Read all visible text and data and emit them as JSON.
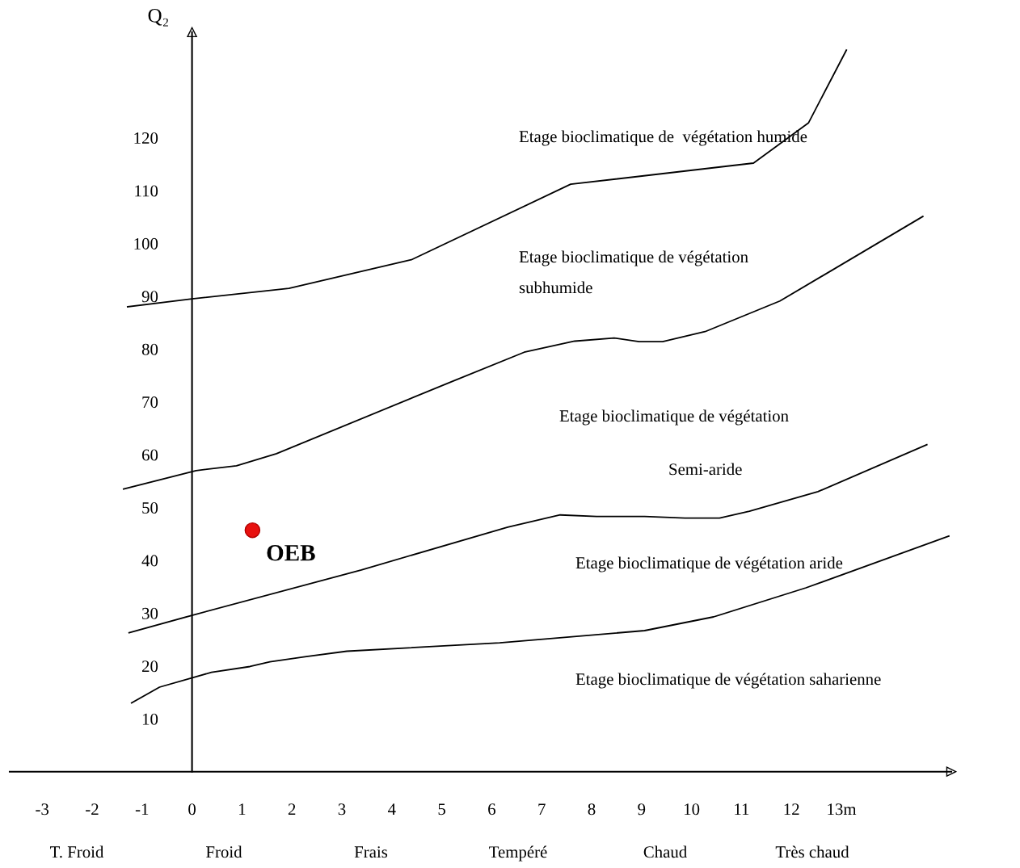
{
  "chart_data": {
    "type": "line",
    "ylabel": "Q₂",
    "xlim": [
      -3.65,
      15.2
    ],
    "ylim": [
      0,
      140
    ],
    "xticks": [
      -3,
      -2,
      -1,
      0,
      1,
      2,
      3,
      4,
      5,
      6,
      7,
      8,
      9,
      10,
      11,
      12,
      {
        "value": 13,
        "label": "13m"
      }
    ],
    "yticks": [
      10,
      20,
      30,
      40,
      50,
      60,
      70,
      80,
      90,
      100,
      110,
      120
    ],
    "grid": false,
    "legend": false,
    "line_style": "solid",
    "series": [
      {
        "color": "#000000",
        "x": [
          -1.29,
          0,
          1.94,
          4.39,
          7.58,
          11.24,
          12.34,
          13.1
        ],
        "values": [
          88.0,
          89.5,
          91.5,
          96.9,
          111.2,
          115.2,
          122.8,
          136.6
        ]
      },
      {
        "color": "#000000",
        "x": [
          -1.37,
          0.08,
          0.89,
          1.69,
          5.19,
          6.65,
          7.66,
          8.45,
          8.95,
          9.42,
          10.27,
          11.77,
          14.63
        ],
        "values": [
          53.5,
          57.0,
          57.9,
          60.2,
          73.8,
          79.4,
          81.5,
          82.1,
          81.4,
          81.4,
          83.3,
          89.1,
          105.1
        ]
      },
      {
        "color": "#000000",
        "x": [
          -1.26,
          0,
          3.39,
          6.32,
          7.37,
          8.1,
          9.06,
          9.87,
          10.56,
          11.16,
          12.53,
          14.71
        ],
        "values": [
          26.3,
          29.6,
          38.2,
          46.3,
          48.6,
          48.3,
          48.3,
          48.0,
          48.0,
          49.3,
          53.0,
          61.9
        ]
      },
      {
        "color": "#000000",
        "x": [
          -1.21,
          -0.65,
          0.39,
          1.16,
          1.56,
          2.29,
          3.1,
          6.16,
          9.06,
          10.44,
          12.29,
          15.15
        ],
        "values": [
          13.0,
          16.0,
          18.8,
          19.9,
          20.8,
          21.8,
          22.8,
          24.4,
          26.7,
          29.3,
          34.8,
          44.6
        ]
      },
      {
        "type": "scatter",
        "name": "OEB",
        "marker": "circle",
        "color": "#e8110f",
        "x": [
          1.21
        ],
        "values": [
          45.7
        ]
      }
    ],
    "annotations": [
      "Etage bioclimatique de  végétation humide",
      "Etage bioclimatique de végétation",
      "subhumide",
      "Etage bioclimatique de végétation",
      "Semi-aride",
      "Etage bioclimatique de végétation aride",
      "Etage bioclimatique de végétation saharienne",
      "T. Froid",
      "Froid",
      "Frais",
      "Tempéré",
      "Chaud",
      "Très chaud"
    ]
  }
}
